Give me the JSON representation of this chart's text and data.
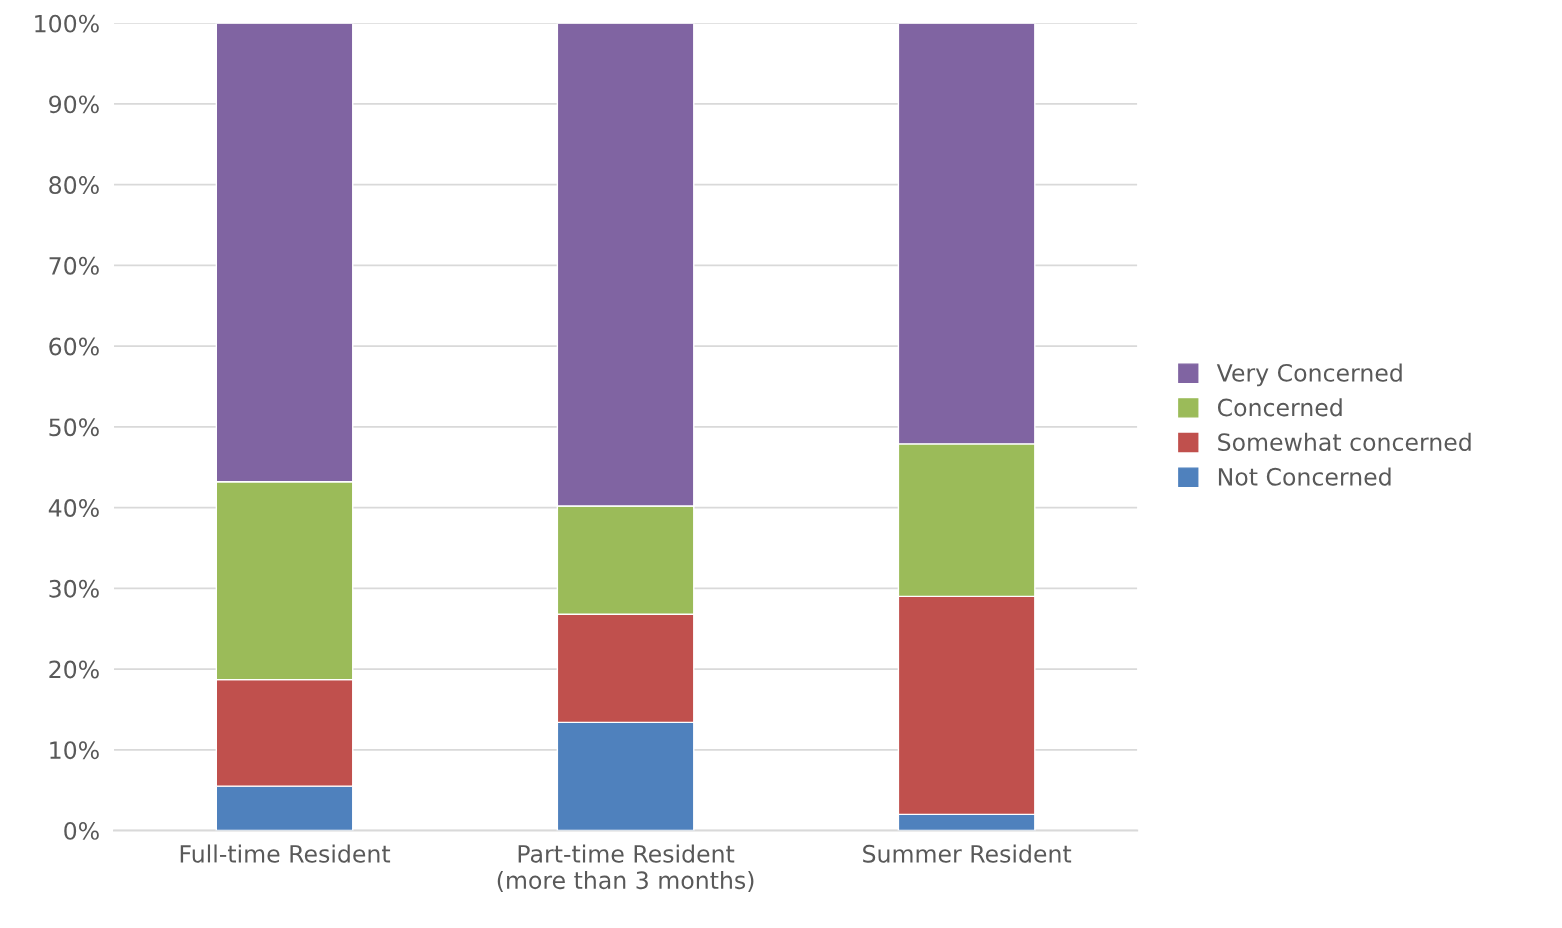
{
  "chart_data": {
    "type": "bar",
    "stacked": true,
    "categories": [
      "Full-time Resident",
      "Part-time Resident\n(more than 3 months)",
      "Summer Resident"
    ],
    "series": [
      {
        "name": "Not Concerned",
        "color": "#4f81bd",
        "values": [
          5.5,
          13.4,
          2.0
        ]
      },
      {
        "name": "Somewhat concerned",
        "color": "#c0504d",
        "values": [
          13.2,
          13.4,
          27.0
        ]
      },
      {
        "name": "Concerned",
        "color": "#9bbb59",
        "values": [
          24.5,
          13.4,
          18.9
        ]
      },
      {
        "name": "Very Concerned",
        "color": "#8064a2",
        "values": [
          56.8,
          59.8,
          52.1
        ]
      }
    ],
    "ylim": [
      0,
      100
    ],
    "yticks": [
      {
        "value": 0,
        "label": "0%"
      },
      {
        "value": 10,
        "label": "10%"
      },
      {
        "value": 20,
        "label": "20%"
      },
      {
        "value": 30,
        "label": "30%"
      },
      {
        "value": 40,
        "label": "40%"
      },
      {
        "value": 50,
        "label": "50%"
      },
      {
        "value": 60,
        "label": "60%"
      },
      {
        "value": 70,
        "label": "70%"
      },
      {
        "value": 80,
        "label": "80%"
      },
      {
        "value": 90,
        "label": "90%"
      },
      {
        "value": 100,
        "label": "100%"
      }
    ],
    "grid": "y",
    "legend": "right"
  }
}
